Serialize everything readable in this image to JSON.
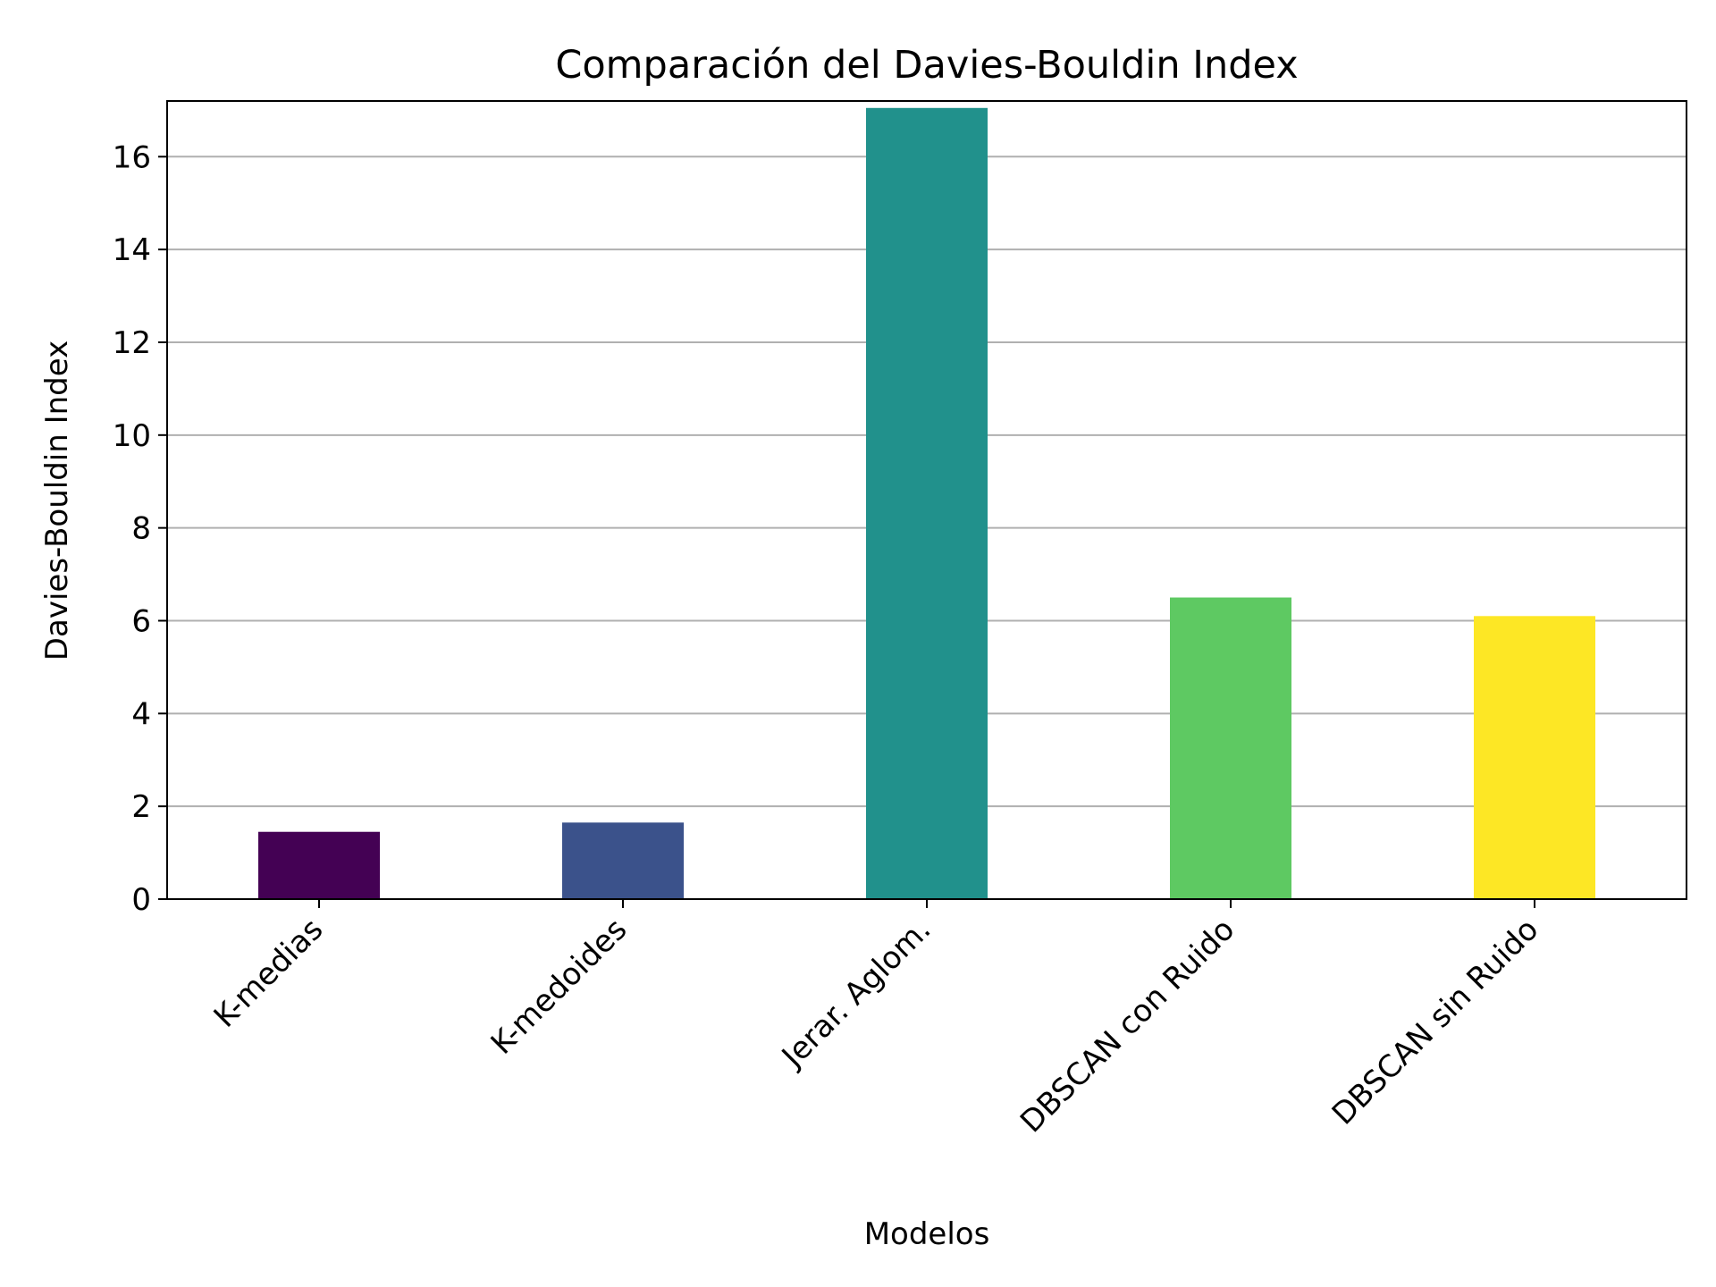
{
  "chart_data": {
    "type": "bar",
    "title": "Comparación del Davies-Bouldin Index",
    "xlabel": "Modelos",
    "ylabel": "Davies-Bouldin Index",
    "categories": [
      "K-medias",
      "K-medoides",
      "Jerar. Aglom.",
      "DBSCAN con Ruido",
      "DBSCAN sin Ruido"
    ],
    "values": [
      1.45,
      1.65,
      17.05,
      6.5,
      6.1
    ],
    "colors": [
      "#440154",
      "#3b528b",
      "#21918c",
      "#5ec962",
      "#fde725"
    ],
    "ylim": [
      0,
      17.2
    ],
    "yticks": [
      0,
      2,
      4,
      6,
      8,
      10,
      12,
      14,
      16
    ],
    "grid": "y",
    "legend": "none"
  }
}
